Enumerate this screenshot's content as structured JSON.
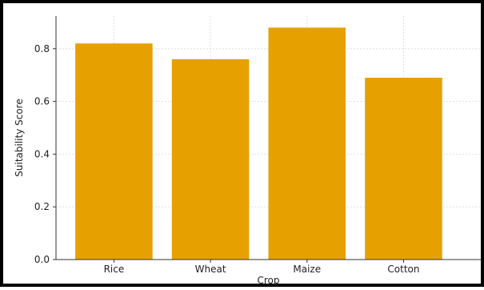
{
  "chart_data": {
    "type": "bar",
    "title": "",
    "xlabel": "Crop",
    "ylabel": "Suitability Score",
    "categories": [
      "Rice",
      "Wheat",
      "Maize",
      "Cotton"
    ],
    "values": [
      0.82,
      0.76,
      0.88,
      0.69
    ],
    "ylim": [
      0,
      0.924
    ],
    "yticks": [
      0.0,
      0.2,
      0.4,
      0.6,
      0.8
    ],
    "ytick_labels": [
      "0.0",
      "0.2",
      "0.4",
      "0.6",
      "0.8"
    ],
    "grid": true,
    "bar_color": "#E6A000",
    "grid_color": "#d9d9d9"
  }
}
